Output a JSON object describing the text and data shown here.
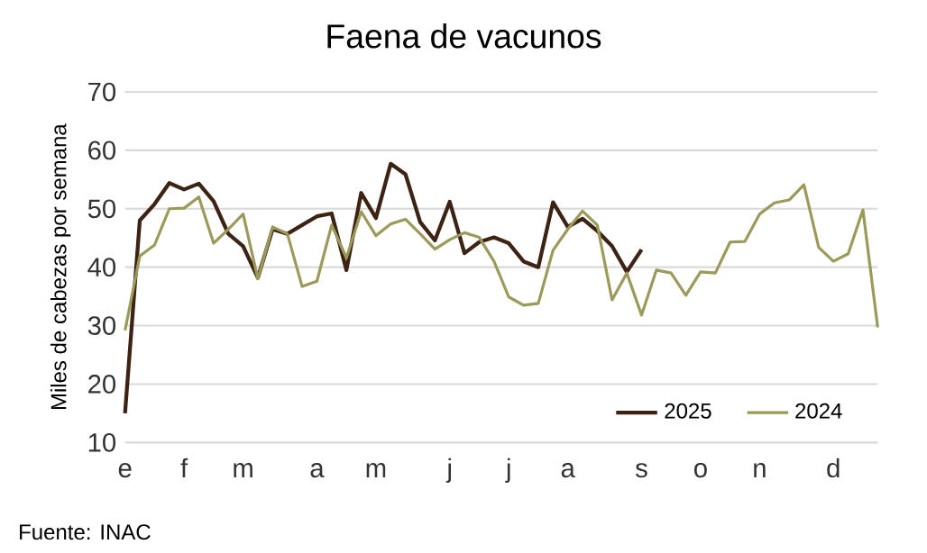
{
  "chart_data": {
    "type": "line",
    "title": "Faena de vacunos",
    "ylabel": "Miles de cabezas por semana",
    "annotations": [
      "Fuente: INAC"
    ],
    "categories": [
      "e",
      null,
      null,
      null,
      "f",
      null,
      null,
      null,
      "m",
      null,
      null,
      null,
      null,
      "a",
      null,
      null,
      null,
      "m",
      null,
      null,
      null,
      null,
      "j",
      null,
      null,
      null,
      "j",
      null,
      null,
      null,
      "a",
      null,
      null,
      null,
      null,
      "s",
      null,
      null,
      null,
      "o",
      null,
      null,
      null,
      "n",
      null,
      null,
      null,
      null,
      "d",
      null,
      null,
      null
    ],
    "ylim": [
      10,
      70
    ],
    "yticks": [
      10,
      20,
      30,
      40,
      50,
      60,
      70
    ],
    "grid": "y",
    "legend": "bottom right",
    "series": [
      {
        "name": "2025",
        "color": "#3d2314",
        "values": [
          15,
          48.0,
          50.8,
          54.4,
          53.3,
          54.3,
          51.3,
          45.7,
          43.6,
          38.2,
          46.5,
          45.7,
          47.2,
          48.7,
          49.2,
          39.5,
          52.7,
          48.4,
          57.7,
          55.9,
          47.7,
          44.6,
          51.2,
          42.4,
          44.3,
          45.1,
          44.1,
          41.0,
          40.0,
          51.1,
          46.9,
          48.3,
          46.2,
          43.6,
          39.2,
          43.0,
          null,
          null,
          null,
          null,
          null,
          null,
          null,
          null,
          null,
          null,
          null,
          null,
          null,
          null,
          null,
          null
        ]
      },
      {
        "name": "2024",
        "color": "#9c9a5a",
        "values": [
          29.2,
          41.9,
          43.8,
          50.0,
          50.1,
          52.0,
          44.1,
          46.5,
          49.1,
          38.0,
          46.9,
          45.7,
          36.7,
          37.6,
          47.2,
          41.6,
          49.5,
          45.4,
          47.4,
          48.2,
          45.7,
          43.1,
          44.7,
          45.9,
          45.1,
          41.0,
          34.9,
          33.5,
          33.8,
          42.9,
          46.5,
          49.6,
          47.2,
          34.4,
          39.0,
          31.8,
          39.5,
          39.0,
          35.2,
          39.2,
          39.0,
          44.3,
          44.4,
          49.1,
          51.0,
          51.5,
          54.1,
          43.4,
          41.0,
          42.3,
          49.8,
          29.7
        ]
      }
    ]
  }
}
